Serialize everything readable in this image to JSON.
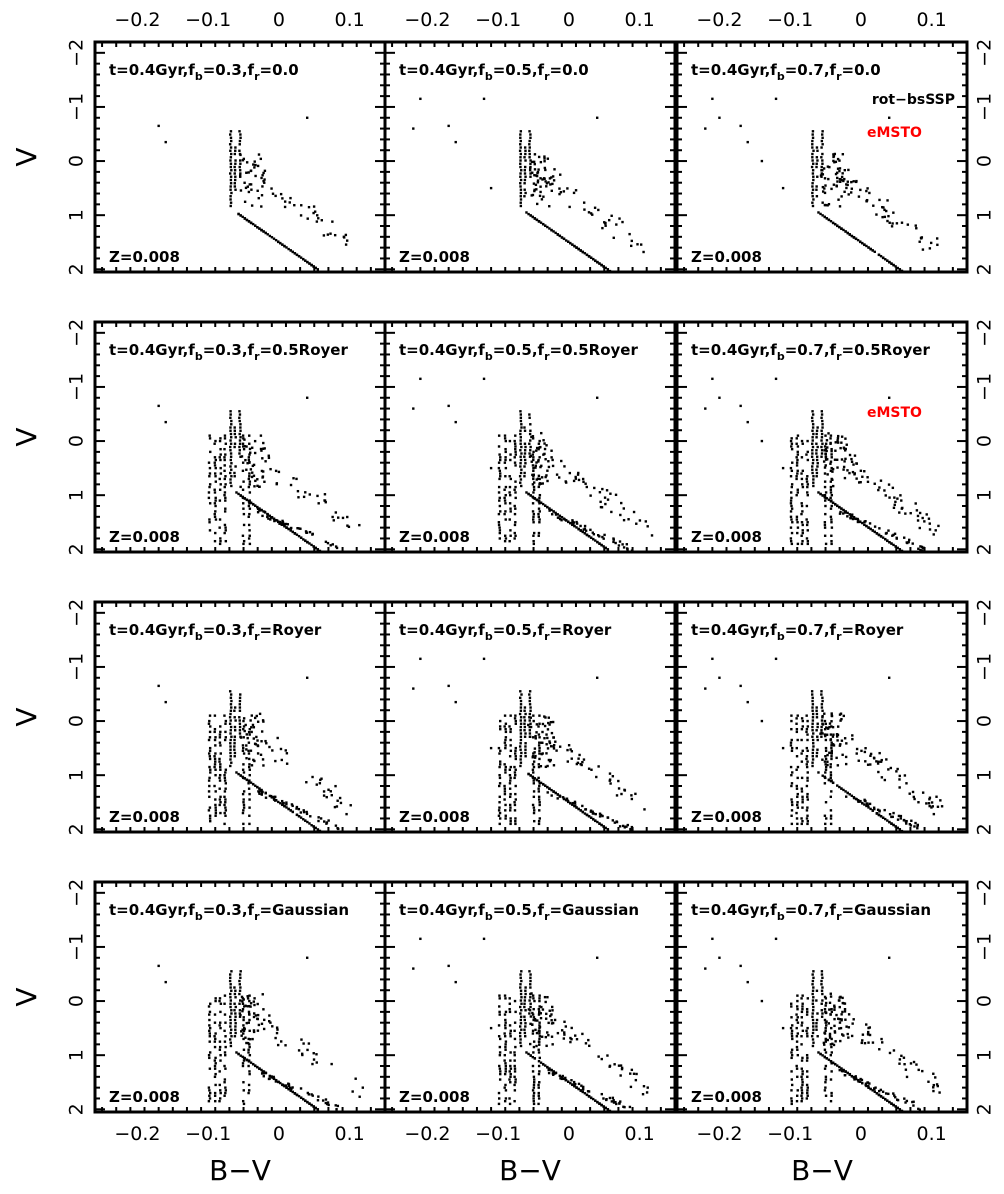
{
  "chart_data": {
    "type": "scatter",
    "grid": "3 columns x 4 rows of color-magnitude diagrams (V vs B-V)",
    "xlabel": "B−V",
    "ylabel": "V",
    "xlim": [
      -0.26,
      0.15
    ],
    "ylim": [
      2.05,
      -2.2
    ],
    "y_inverted": true,
    "x_ticks": [
      -0.2,
      -0.1,
      0,
      0.1
    ],
    "x_tick_labels": [
      "−0.2",
      "−0.1",
      "0",
      "0.1"
    ],
    "y_ticks": [
      -2,
      -1,
      0,
      1,
      2
    ],
    "y_tick_labels": [
      "−2",
      "−1",
      "0",
      "1",
      "2"
    ],
    "colors": {
      "points": "#000000",
      "frame": "#000000",
      "emsto": "#ff0000"
    },
    "panels": [
      {
        "row": 0,
        "col": 0,
        "label": "t=0.4Gyr,f",
        "fb": "0.3",
        "fr": "0.0",
        "metallicity": "Z=0.008",
        "spread": 0,
        "seed": 11
      },
      {
        "row": 0,
        "col": 1,
        "label": "t=0.4Gyr,f",
        "fb": "0.5",
        "fr": "0.0",
        "metallicity": "Z=0.008",
        "spread": 0,
        "seed": 12
      },
      {
        "row": 0,
        "col": 2,
        "label": "t=0.4Gyr,f",
        "fb": "0.7",
        "fr": "0.0",
        "metallicity": "Z=0.008",
        "spread": 0,
        "seed": 13,
        "note": "rot−bsSSP",
        "emsto": "eMSTO"
      },
      {
        "row": 1,
        "col": 0,
        "label": "t=0.4Gyr,f",
        "fb": "0.3",
        "fr": "0.5Royer",
        "metallicity": "Z=0.008",
        "spread": 1,
        "seed": 21
      },
      {
        "row": 1,
        "col": 1,
        "label": "t=0.4Gyr,f",
        "fb": "0.5",
        "fr": "0.5Royer",
        "metallicity": "Z=0.008",
        "spread": 1,
        "seed": 22
      },
      {
        "row": 1,
        "col": 2,
        "label": "t=0.4Gyr,f",
        "fb": "0.7",
        "fr": "0.5Royer",
        "metallicity": "Z=0.008",
        "spread": 1,
        "seed": 23,
        "emsto": "eMSTO"
      },
      {
        "row": 2,
        "col": 0,
        "label": "t=0.4Gyr,f",
        "fb": "0.3",
        "fr": "Royer",
        "metallicity": "Z=0.008",
        "spread": 1,
        "seed": 31
      },
      {
        "row": 2,
        "col": 1,
        "label": "t=0.4Gyr,f",
        "fb": "0.5",
        "fr": "Royer",
        "metallicity": "Z=0.008",
        "spread": 1,
        "seed": 32
      },
      {
        "row": 2,
        "col": 2,
        "label": "t=0.4Gyr,f",
        "fb": "0.7",
        "fr": "Royer",
        "metallicity": "Z=0.008",
        "spread": 1,
        "seed": 33
      },
      {
        "row": 3,
        "col": 0,
        "label": "t=0.4Gyr,f",
        "fb": "0.3",
        "fr": "Gaussian",
        "metallicity": "Z=0.008",
        "spread": 1,
        "seed": 41
      },
      {
        "row": 3,
        "col": 1,
        "label": "t=0.4Gyr,f",
        "fb": "0.5",
        "fr": "Gaussian",
        "metallicity": "Z=0.008",
        "spread": 1,
        "seed": 42
      },
      {
        "row": 3,
        "col": 2,
        "label": "t=0.4Gyr,f",
        "fb": "0.7",
        "fr": "Gaussian",
        "metallicity": "Z=0.008",
        "spread": 1,
        "seed": 43
      }
    ]
  }
}
